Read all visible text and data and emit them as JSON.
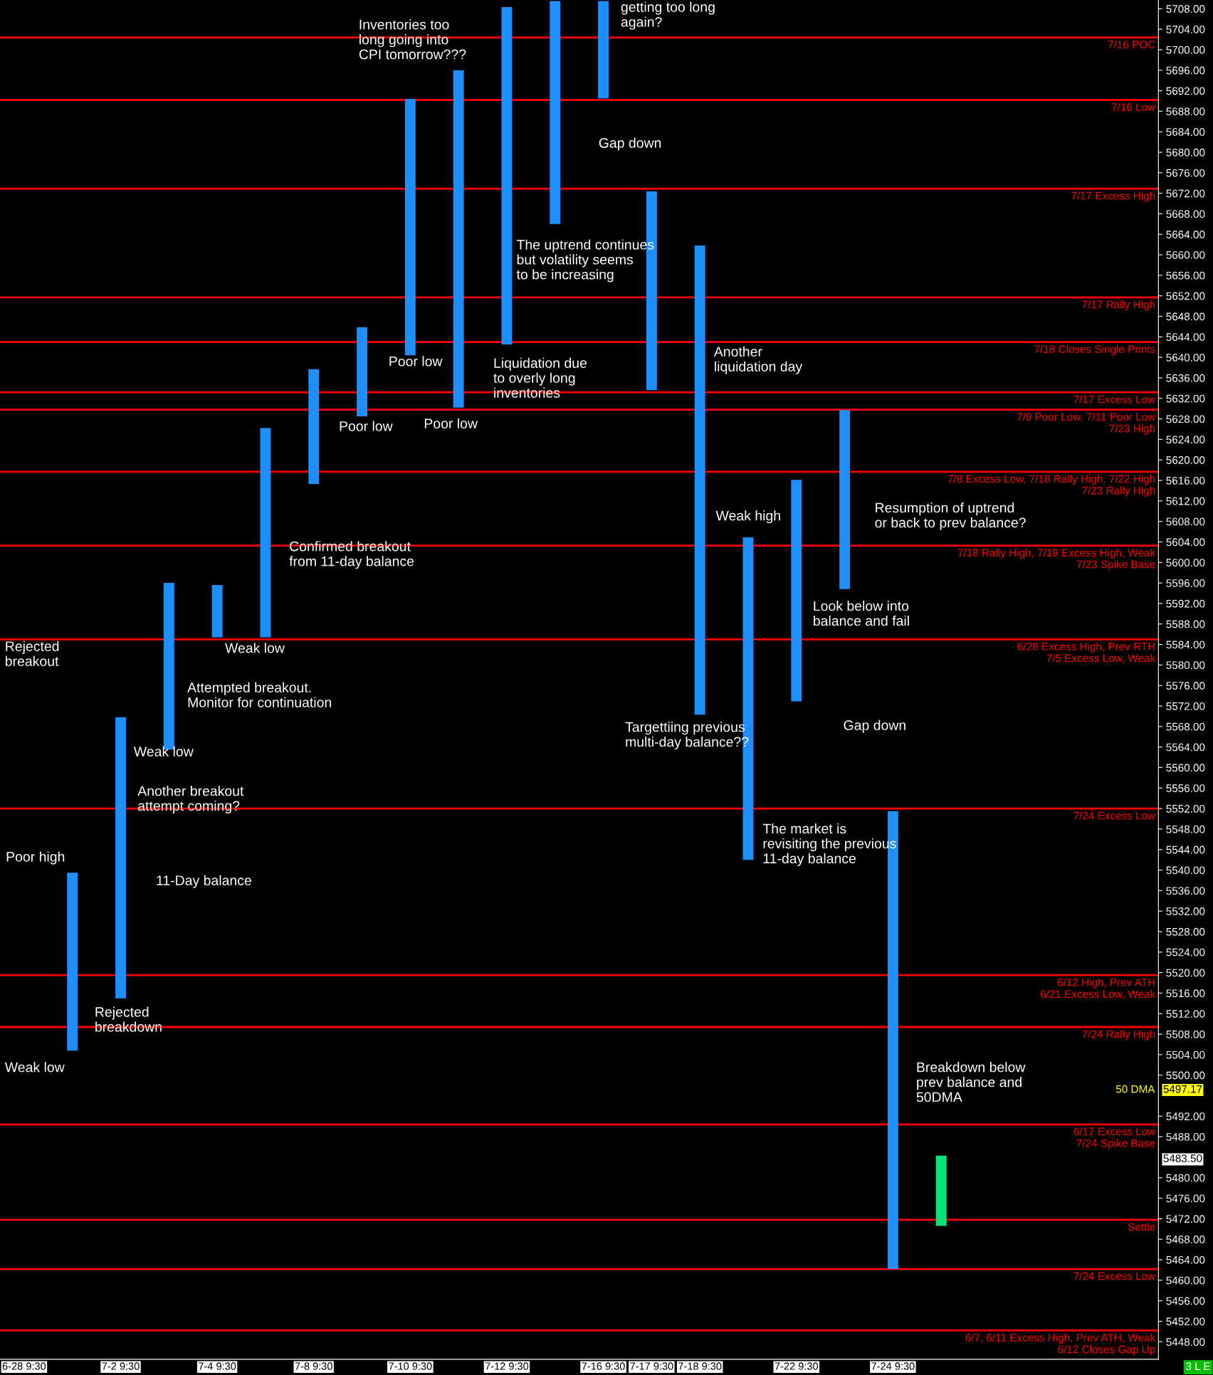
{
  "chart_data": {
    "type": "bar",
    "categories": [
      "6-28 9:30",
      null,
      "7-2 9:30",
      null,
      "7-4 9:30",
      null,
      "7-8 9:30",
      null,
      "7-10 9:30",
      null,
      "7-12 9:30",
      null,
      "7-16 9:30",
      "7-17 9:30",
      "7-18 9:30",
      null,
      "7-22 9:30",
      null,
      "7-24 9:30",
      null,
      null,
      null,
      null,
      null
    ],
    "base": [
      null,
      5504.8,
      5515.0,
      5563.5,
      5585.4,
      5585.4,
      5615.3,
      5628.5,
      5640.4,
      5630.2,
      5642.5,
      5666.0,
      5690.5,
      5633.6,
      5570.3,
      5542.0,
      5572.9,
      5594.8,
      5462.2,
      5470.6,
      null,
      null,
      null,
      null
    ],
    "values": [
      null,
      34.7,
      54.8,
      32.5,
      10.2,
      40.8,
      22.4,
      17.4,
      50.0,
      65.8,
      65.8,
      43.5,
      19.0,
      38.8,
      91.5,
      62.9,
      43.2,
      34.9,
      89.3,
      13.7,
      null,
      null,
      null,
      null
    ],
    "colors": [
      "#1e8fff",
      "#1e8fff",
      "#1e8fff",
      "#1e8fff",
      "#1e8fff",
      "#1e8fff",
      "#1e8fff",
      "#1e8fff",
      "#1e8fff",
      "#1e8fff",
      "#1e8fff",
      "#1e8fff",
      "#1e8fff",
      "#1e8fff",
      "#1e8fff",
      "#1e8fff",
      "#1e8fff",
      "#1e8fff",
      "#1e8fff",
      "#00e676",
      null,
      null,
      null,
      null
    ],
    "ylim": [
      5444.6,
      5709.7
    ],
    "yticks": [
      {
        "value": 5448,
        "label": "5448.00"
      },
      {
        "value": 5452,
        "label": "5452.00"
      },
      {
        "value": 5456,
        "label": "5456.00"
      },
      {
        "value": 5460,
        "label": "5460.00"
      },
      {
        "value": 5464,
        "label": "5464.00"
      },
      {
        "value": 5468,
        "label": "5468.00"
      },
      {
        "value": 5472,
        "label": "5472.00"
      },
      {
        "value": 5476,
        "label": "5476.00"
      },
      {
        "value": 5480,
        "label": "5480.00"
      },
      {
        "value": 5488,
        "label": "5488.00"
      },
      {
        "value": 5492,
        "label": "5492.00"
      },
      {
        "value": 5500,
        "label": "5500.00"
      },
      {
        "value": 5504,
        "label": "5504.00"
      },
      {
        "value": 5508,
        "label": "5508.00"
      },
      {
        "value": 5512,
        "label": "5512.00"
      },
      {
        "value": 5516,
        "label": "5516.00"
      },
      {
        "value": 5520,
        "label": "5520.00"
      },
      {
        "value": 5524,
        "label": "5524.00"
      },
      {
        "value": 5528,
        "label": "5528.00"
      },
      {
        "value": 5532,
        "label": "5532.00"
      },
      {
        "value": 5536,
        "label": "5536.00"
      },
      {
        "value": 5540,
        "label": "5540.00"
      },
      {
        "value": 5544,
        "label": "5544.00"
      },
      {
        "value": 5548,
        "label": "5548.00"
      },
      {
        "value": 5552,
        "label": "5552.00"
      },
      {
        "value": 5556,
        "label": "5556.00"
      },
      {
        "value": 5560,
        "label": "5560.00"
      },
      {
        "value": 5564,
        "label": "5564.00"
      },
      {
        "value": 5568,
        "label": "5568.00"
      },
      {
        "value": 5572,
        "label": "5572.00"
      },
      {
        "value": 5576,
        "label": "5576.00"
      },
      {
        "value": 5580,
        "label": "5580.00"
      },
      {
        "value": 5584,
        "label": "5584.00"
      },
      {
        "value": 5588,
        "label": "5588.00"
      },
      {
        "value": 5592,
        "label": "5592.00"
      },
      {
        "value": 5596,
        "label": "5596.00"
      },
      {
        "value": 5600,
        "label": "5600.00"
      },
      {
        "value": 5604,
        "label": "5604.00"
      },
      {
        "value": 5608,
        "label": "5608.00"
      },
      {
        "value": 5612,
        "label": "5612.00"
      },
      {
        "value": 5616,
        "label": "5616.00"
      },
      {
        "value": 5620,
        "label": "5620.00"
      },
      {
        "value": 5624,
        "label": "5624.00"
      },
      {
        "value": 5628,
        "label": "5628.00"
      },
      {
        "value": 5632,
        "label": "5632.00"
      },
      {
        "value": 5636,
        "label": "5636.00"
      },
      {
        "value": 5640,
        "label": "5640.00"
      },
      {
        "value": 5644,
        "label": "5644.00"
      },
      {
        "value": 5648,
        "label": "5648.00"
      },
      {
        "value": 5652,
        "label": "5652.00"
      },
      {
        "value": 5656,
        "label": "5656.00"
      },
      {
        "value": 5660,
        "label": "5660.00"
      },
      {
        "value": 5664,
        "label": "5664.00"
      },
      {
        "value": 5668,
        "label": "5668.00"
      },
      {
        "value": 5672,
        "label": "5672.00"
      },
      {
        "value": 5676,
        "label": "5676.00"
      },
      {
        "value": 5680,
        "label": "5680.00"
      },
      {
        "value": 5684,
        "label": "5684.00"
      },
      {
        "value": 5688,
        "label": "5688.00"
      },
      {
        "value": 5692,
        "label": "5692.00"
      },
      {
        "value": 5696,
        "label": "5696.00"
      },
      {
        "value": 5700,
        "label": "5700.00"
      },
      {
        "value": 5704,
        "label": "5704.00"
      },
      {
        "value": 5708,
        "label": "5708.00"
      }
    ],
    "ref_lines": [
      {
        "axis": "y",
        "value": 5702.4,
        "label": "7/16 POC",
        "color": "#ff0000"
      },
      {
        "axis": "y",
        "value": 5690.2,
        "label": "7/16 Low",
        "color": "#ff0000"
      },
      {
        "axis": "y",
        "value": 5672.9,
        "label": "7/17 Excess High",
        "color": "#ff0000"
      },
      {
        "axis": "y",
        "value": 5651.7,
        "label": "7/17 Rally High",
        "color": "#ff0000"
      },
      {
        "axis": "y",
        "value": 5643.0,
        "label": "7/18 Closes Single Prints",
        "color": "#ff0000"
      },
      {
        "axis": "y",
        "value": 5633.2,
        "label": "7/17 Excess Low",
        "color": "#ff0000"
      },
      {
        "axis": "y",
        "value": 5629.8,
        "label": "7/9 Poor Low, 7/11 Poor Low\n7/23 High",
        "color": "#ff0000"
      },
      {
        "axis": "y",
        "value": 5617.7,
        "label": "7/8 Excess Low, 7/18 Rally High, 7/22 High\n7/23 Rally High",
        "color": "#ff0000"
      },
      {
        "axis": "y",
        "value": 5603.3,
        "label": "7/18 Rally High, 7/19 Excess High, Weak\n7/23 Spike Base",
        "color": "#ff0000"
      },
      {
        "axis": "y",
        "value": 5585.0,
        "label": "6/28 Excess High, Prev RTH\n7/5 Excess Low, Weak",
        "color": "#ff0000"
      },
      {
        "axis": "y",
        "value": 5552.0,
        "label": "7/24 Excess Low",
        "color": "#ff0000"
      },
      {
        "axis": "y",
        "value": 5519.5,
        "label": "6/12 High, Prev ATH\n6/21 Excess Low, Weak",
        "color": "#ff0000"
      },
      {
        "axis": "y",
        "value": 5509.4,
        "label": "7/24 Rally High",
        "color": "#ff0000"
      },
      {
        "axis": "y",
        "value": 5490.4,
        "label": "6/17 Excess Low\n7/24 Spike Base",
        "color": "#ff0000"
      },
      {
        "axis": "y",
        "value": 5471.8,
        "label": "Settle",
        "color": "#ff0000"
      },
      {
        "axis": "y",
        "value": 5462.2,
        "label": "7/24 Excess Low",
        "color": "#ff0000"
      },
      {
        "axis": "y",
        "value": 5450.2,
        "label": "6/7, 6/11 Excess High, Prev ATH, Weak\n6/12 Closes Gap Up",
        "color": "#ff0000"
      }
    ],
    "annotations": [
      "Inventories too\nlong going into\nCPI tomorrow???",
      "getting too long\nagain?",
      "Gap down",
      "The uptrend continues\nbut volatility seems\nto be increasing",
      "Poor low",
      "Liquidation due\nto overly long\ninventories",
      "Another\nliquidation day",
      "Poor low",
      "Poor low",
      "Weak high",
      "Resumption of uptrend\nor back to prev balance?",
      "Confirmed breakout\nfrom 11-day balance",
      "Look below into\nbalance and fail",
      "Weak low",
      "Rejected\nbreakout",
      "Attempted breakout.\nMonitor for continuation",
      "Targettiing previous\nmulti-day balance??",
      "Gap down",
      "Weak low",
      "Another breakout\nattempt coming?",
      "The market is\nrevisiting the previous\n11-day balance",
      "Poor high",
      "11-Day balance",
      "Rejected\nbreakdown",
      "Weak low",
      "Breakdown below\nprev balance and\n50DMA",
      "50 DMA",
      "5497.17",
      "5483.50",
      "3 L E"
    ]
  }
}
